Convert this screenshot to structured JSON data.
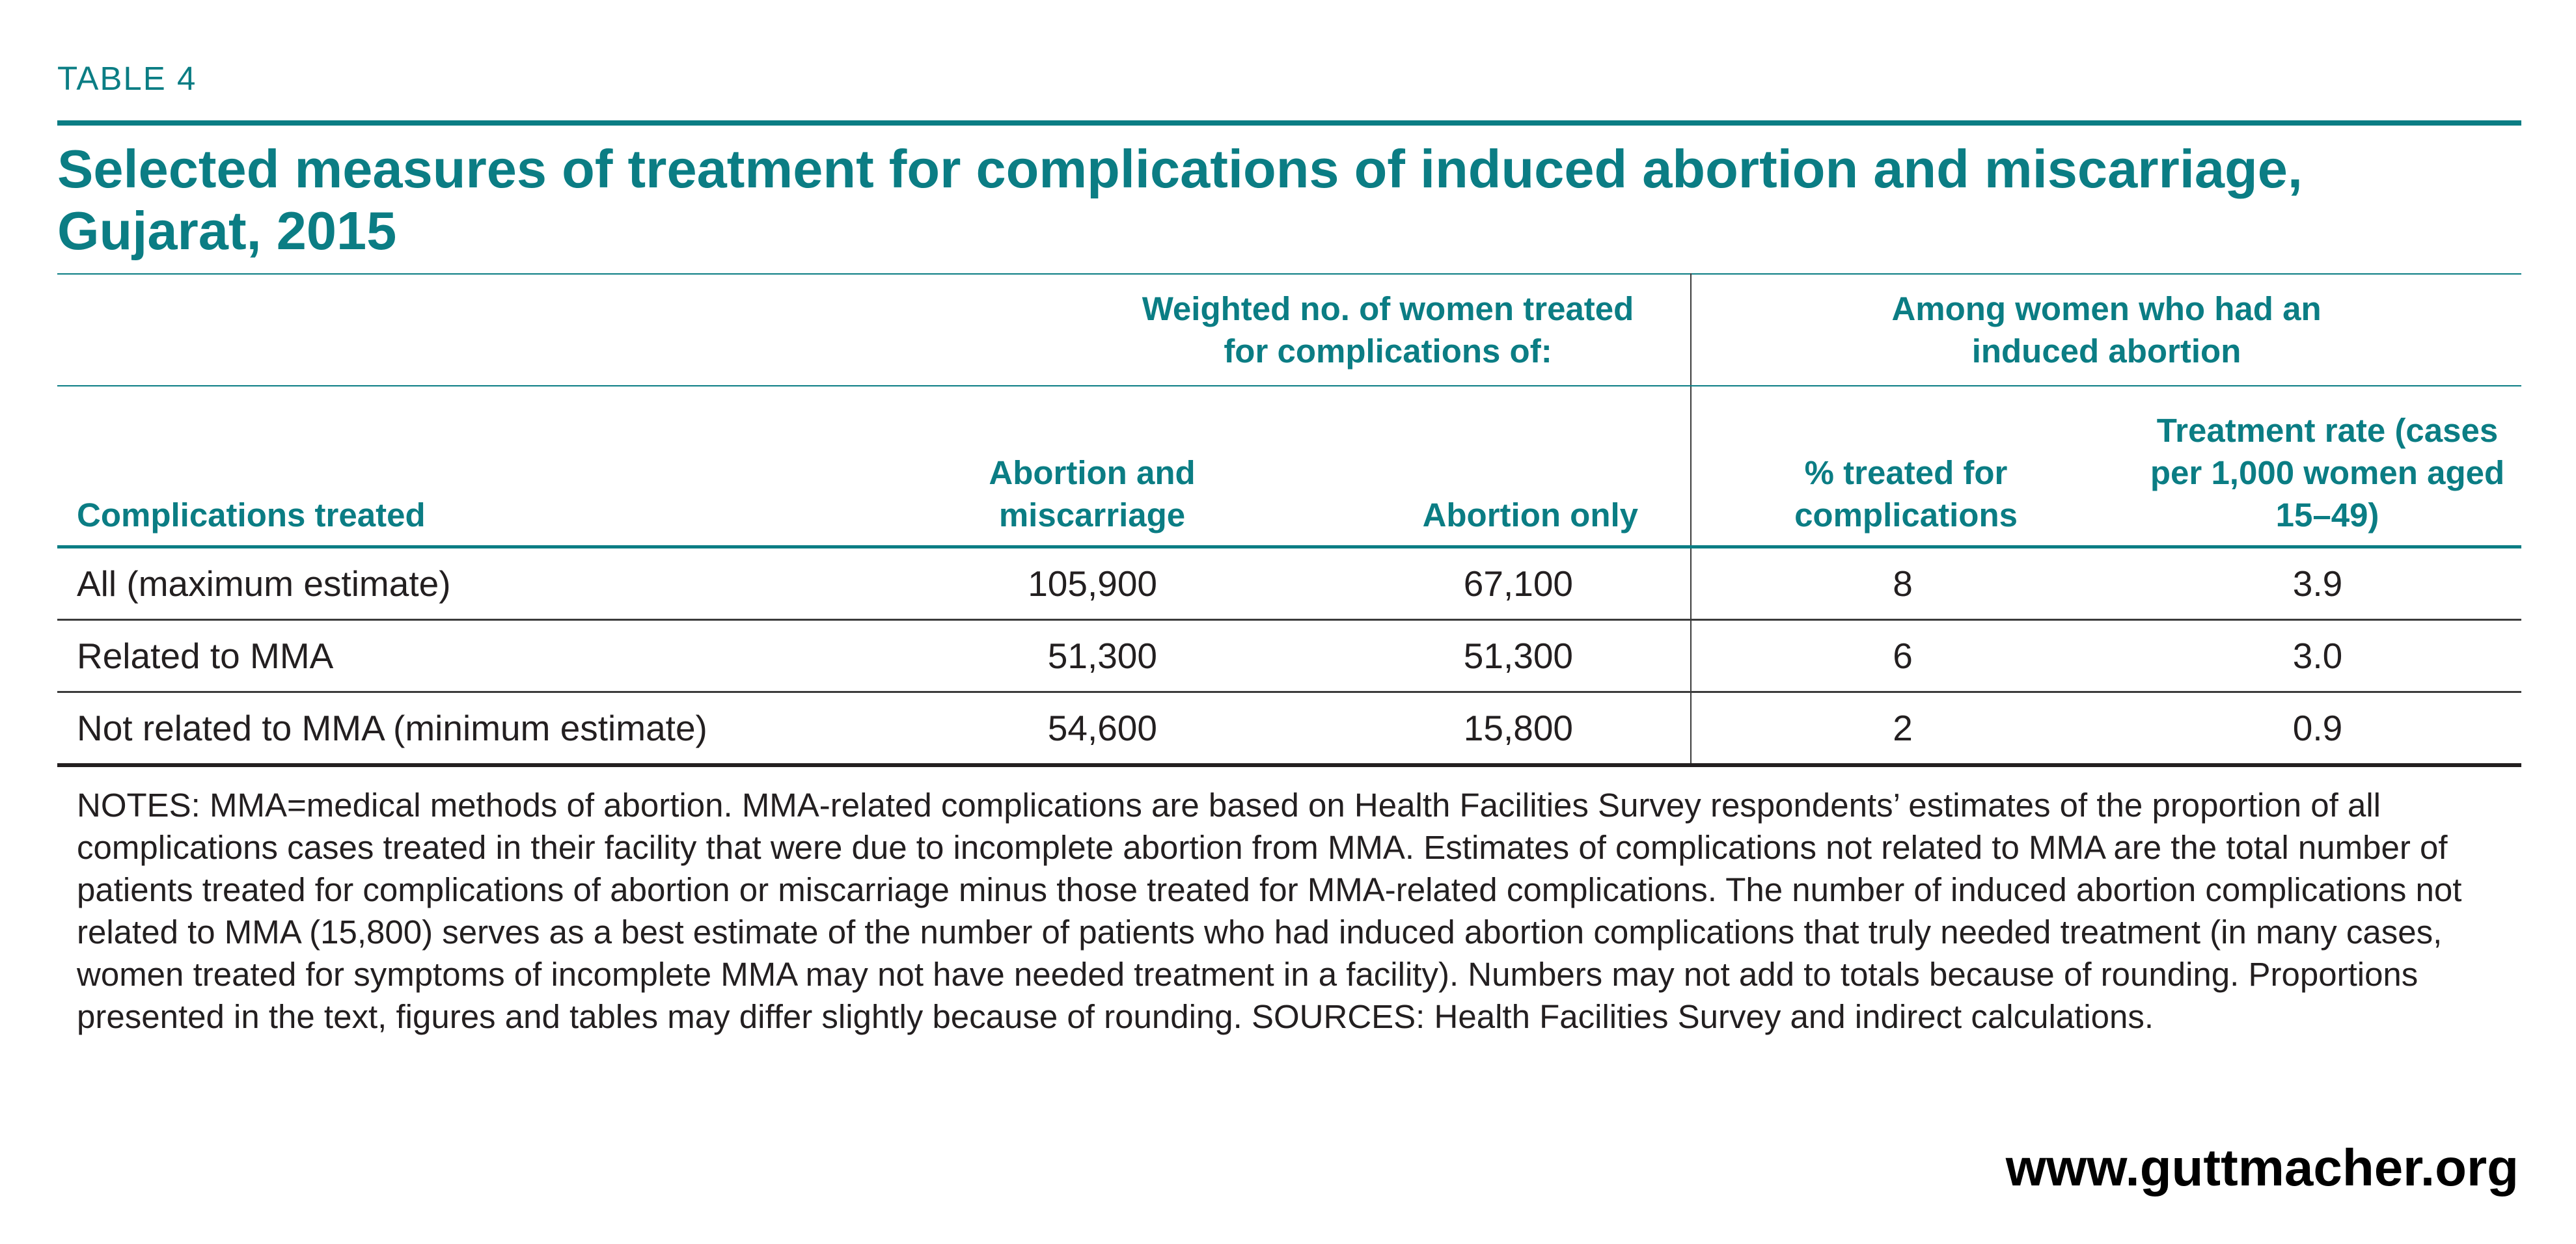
{
  "table_label": "TABLE 4",
  "title": "Selected measures of treatment for complications of induced abortion and miscarriage, Gujarat, 2015",
  "headers": {
    "group_weighted": "Weighted no. of women treated for complications of:",
    "group_induced": "Among women who had an induced abortion",
    "col_complications": "Complications treated",
    "col_abortion_miscarriage": "Abortion and miscarriage",
    "col_abortion_only": "Abortion only",
    "col_pct_treated": "% treated for complications",
    "col_treatment_rate": "Treatment rate (cases per 1,000 women aged 15–49)"
  },
  "rows": [
    {
      "label": "All (maximum estimate)",
      "abortion_miscarriage": "105,900",
      "abortion_only": "67,100",
      "pct_treated": "8",
      "treatment_rate": "3.9"
    },
    {
      "label": "Related to MMA",
      "abortion_miscarriage": "51,300",
      "abortion_only": "51,300",
      "pct_treated": "6",
      "treatment_rate": "3.0"
    },
    {
      "label": "Not related to MMA (minimum estimate)",
      "abortion_miscarriage": "54,600",
      "abortion_only": "15,800",
      "pct_treated": "2",
      "treatment_rate": "0.9"
    }
  ],
  "notes": "NOTES: MMA=medical methods of abortion. MMA-related complications are based on Health Facilities Survey respondents’ estimates of the proportion of all complications cases treated in their facility that were due to incomplete abortion from MMA. Estimates of complications not related to MMA are the total number of patients treated for complications of abortion or miscarriage minus those treated for MMA-related complications. The number of induced abortion complications not related to MMA (15,800) serves as a best estimate of the number of patients who had induced abortion complications that truly needed treatment (in many cases, women treated for symptoms of incomplete MMA may not have needed treatment in a facility). Numbers may not add to totals because of rounding. Proportions presented in the text, figures and tables may differ slightly because of rounding. SOURCES: Health Facilities Survey and indirect calculations.",
  "website": "www.guttmacher.org",
  "colors": {
    "accent": "#0b7d84",
    "text": "#231f20"
  }
}
